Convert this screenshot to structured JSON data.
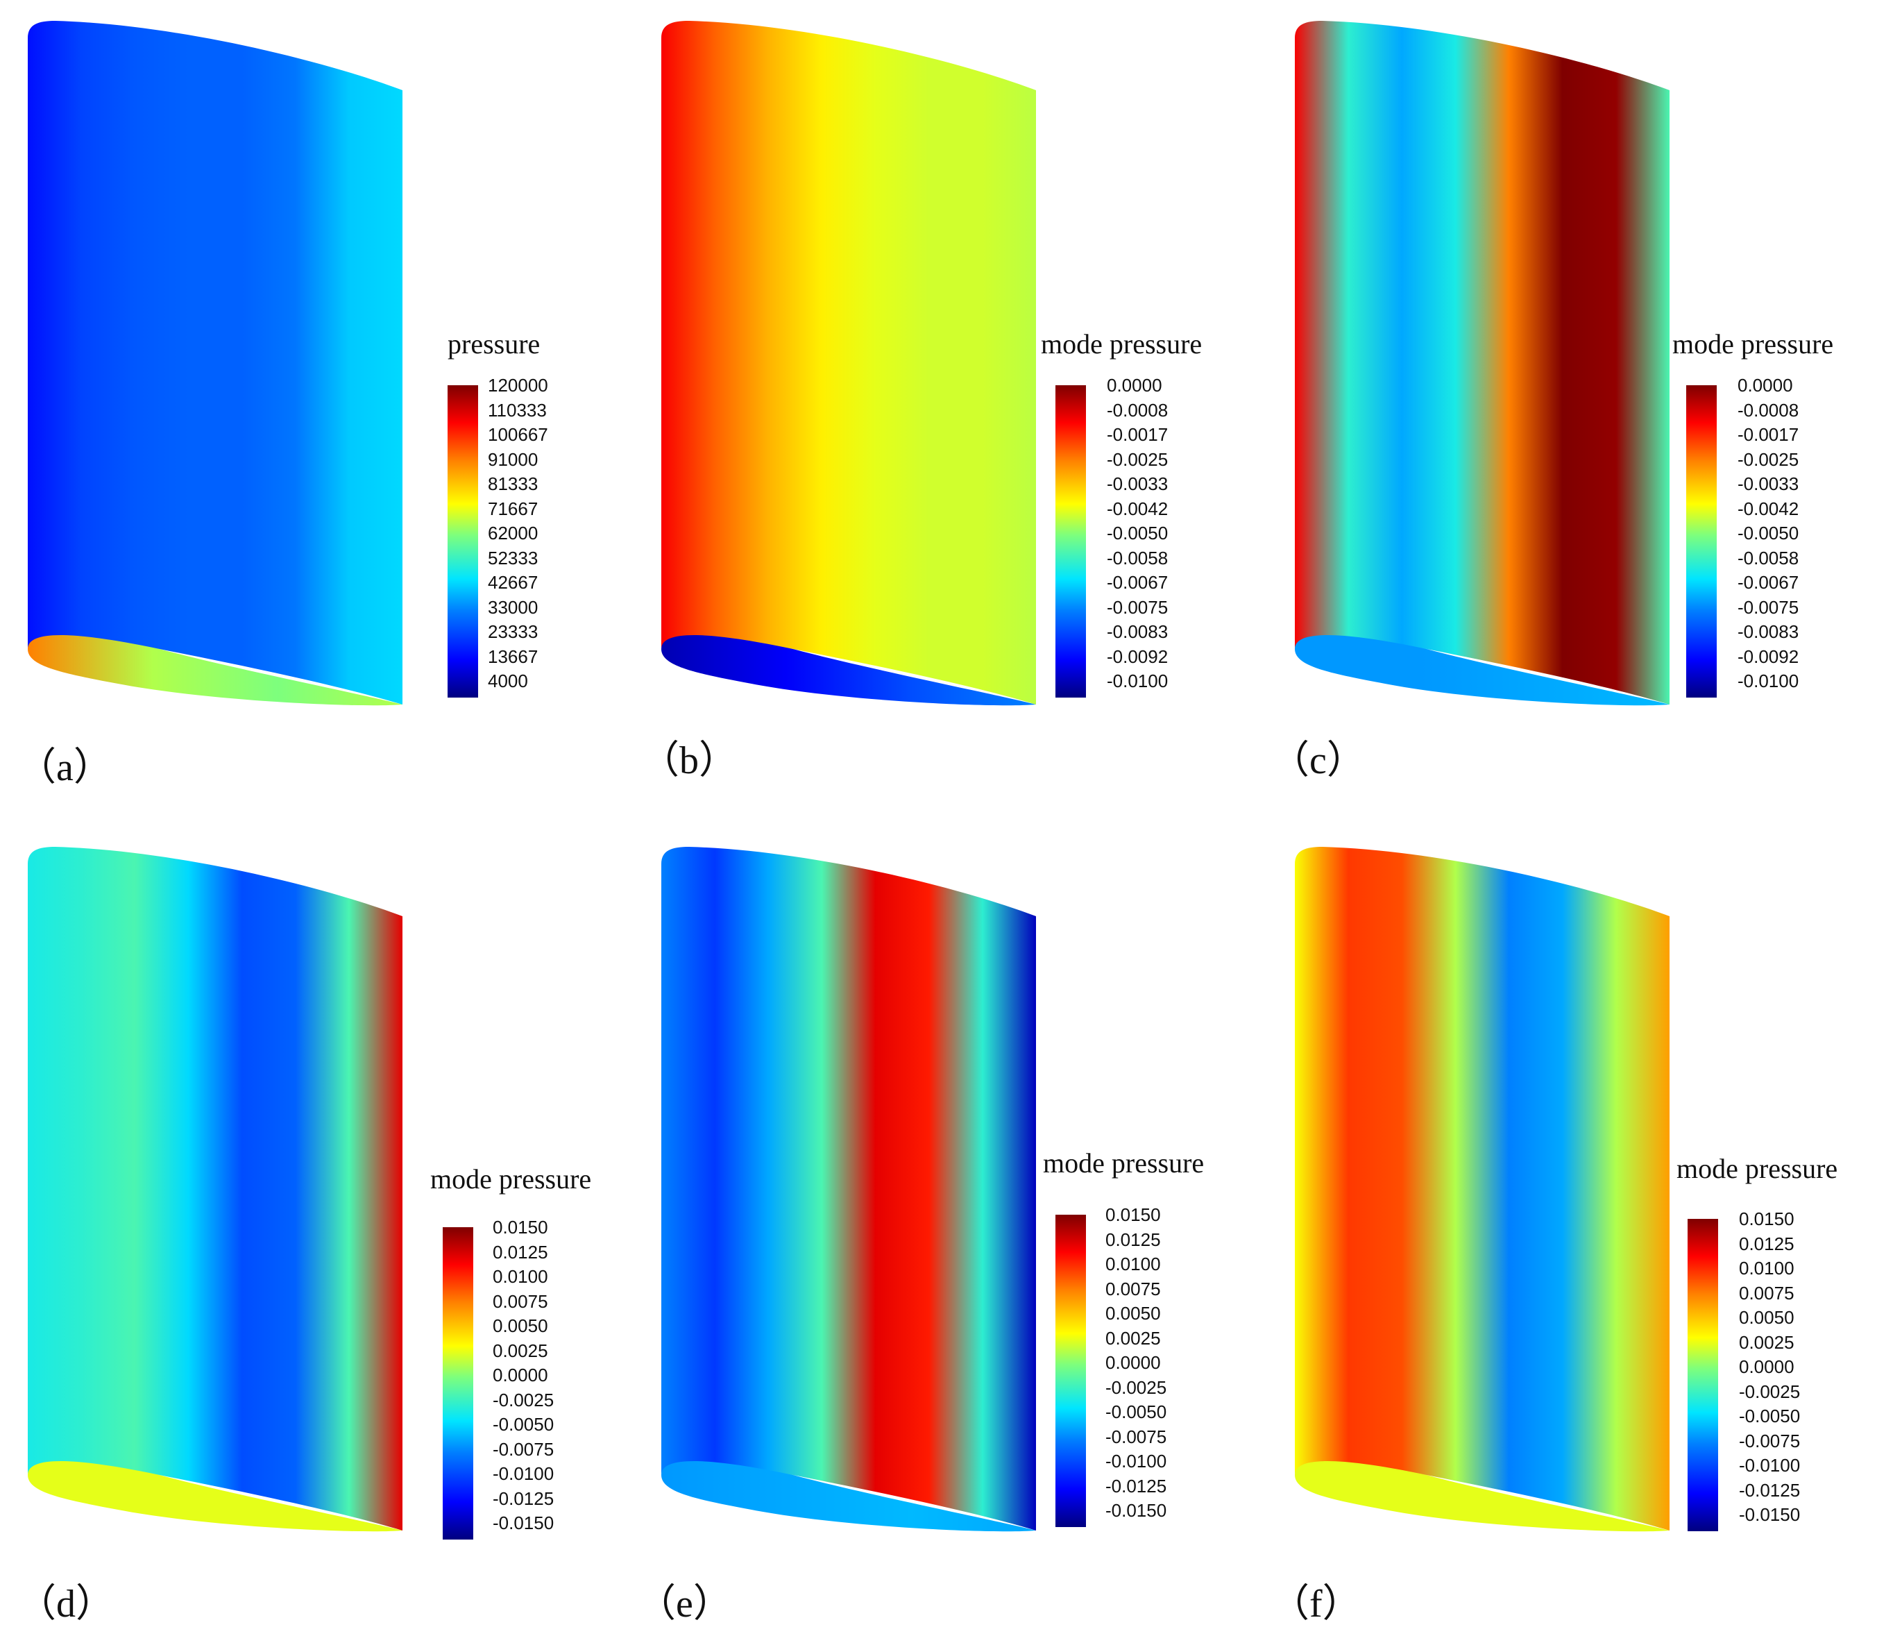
{
  "colormap": [
    "#00007f",
    "#0000ff",
    "#0080ff",
    "#00e5ff",
    "#7dff7d",
    "#ffff00",
    "#ff8000",
    "#ff0000",
    "#7f0000"
  ],
  "panels": [
    {
      "label": "（a）",
      "colorbar_title": "pressure",
      "ticks": [
        "120000",
        "110333",
        "100667",
        "91000",
        "81333",
        "71667",
        "62000",
        "52333",
        "42667",
        "33000",
        "23333",
        "13667",
        "4000"
      ],
      "colorbar_range": [
        4000,
        120000
      ],
      "surface_stops": [
        0.14,
        0.19,
        0.21,
        0.22,
        0.22,
        0.24,
        0.34,
        0.36
      ],
      "bottom_edge_stops": [
        0.75,
        0.55,
        0.5,
        0.55
      ]
    },
    {
      "label": "（b）",
      "colorbar_title": "mode pressure",
      "ticks": [
        "0.0000",
        "-0.0008",
        "-0.0017",
        "-0.0025",
        "-0.0033",
        "-0.0042",
        "-0.0050",
        "-0.0058",
        "-0.0067",
        "-0.0075",
        "-0.0083",
        "-0.0092",
        "-0.0100"
      ],
      "colorbar_range": [
        -0.01,
        0.0
      ],
      "surface_stops": [
        0.88,
        0.78,
        0.7,
        0.64,
        0.6,
        0.58,
        0.58,
        0.56
      ],
      "bottom_edge_stops": [
        0.05,
        0.12,
        0.2,
        0.25
      ]
    },
    {
      "label": "（c）",
      "colorbar_title": "mode pressure",
      "ticks": [
        "0.0000",
        "-0.0008",
        "-0.0017",
        "-0.0025",
        "-0.0033",
        "-0.0042",
        "-0.0050",
        "-0.0058",
        "-0.0067",
        "-0.0075",
        "-0.0083",
        "-0.0092",
        "-0.0100"
      ],
      "colorbar_range": [
        -0.01,
        0.0
      ],
      "surface_stops": [
        0.88,
        0.42,
        0.3,
        0.4,
        0.75,
        1.0,
        0.98,
        0.45
      ],
      "bottom_edge_stops": [
        0.28,
        0.28,
        0.3,
        0.32
      ]
    },
    {
      "label": "（d）",
      "colorbar_title": "mode pressure",
      "ticks": [
        "0.0150",
        "0.0125",
        "0.0100",
        "0.0075",
        "0.0050",
        "0.0025",
        "0.0000",
        "-0.0025",
        "-0.0050",
        "-0.0075",
        "-0.0100",
        "-0.0125",
        "-0.0150"
      ],
      "colorbar_range": [
        -0.015,
        0.015
      ],
      "surface_stops": [
        0.4,
        0.42,
        0.45,
        0.36,
        0.2,
        0.22,
        0.45,
        0.9
      ],
      "bottom_edge_stops": [
        0.6,
        0.6,
        0.6,
        0.6
      ]
    },
    {
      "label": "（e）",
      "colorbar_title": "mode pressure",
      "ticks": [
        "0.0150",
        "0.0125",
        "0.0100",
        "0.0075",
        "0.0050",
        "0.0025",
        "0.0000",
        "-0.0025",
        "-0.0050",
        "-0.0075",
        "-0.0100",
        "-0.0125",
        "-0.0150"
      ],
      "colorbar_range": [
        -0.015,
        0.015
      ],
      "surface_stops": [
        0.25,
        0.18,
        0.3,
        0.45,
        0.9,
        0.85,
        0.42,
        0.06
      ],
      "bottom_edge_stops": [
        0.28,
        0.3,
        0.32,
        0.3
      ]
    },
    {
      "label": "（f）",
      "colorbar_title": "mode pressure",
      "ticks": [
        "0.0150",
        "0.0125",
        "0.0100",
        "0.0075",
        "0.0050",
        "0.0025",
        "0.0000",
        "-0.0025",
        "-0.0050",
        "-0.0075",
        "-0.0100",
        "-0.0125",
        "-0.0150"
      ],
      "colorbar_range": [
        -0.015,
        0.015
      ],
      "surface_stops": [
        0.62,
        0.82,
        0.8,
        0.55,
        0.25,
        0.3,
        0.55,
        0.72
      ],
      "bottom_edge_stops": [
        0.6,
        0.6,
        0.6,
        0.6
      ]
    }
  ]
}
